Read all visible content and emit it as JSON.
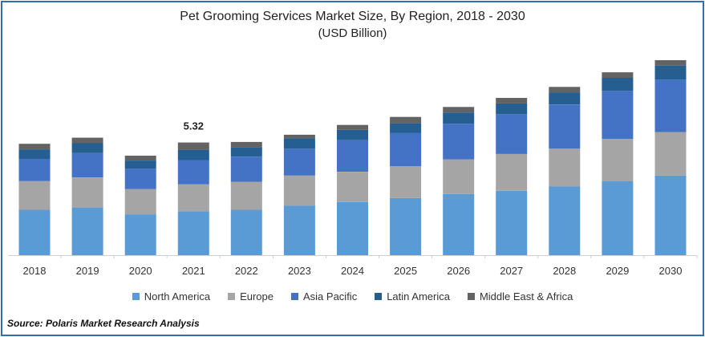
{
  "chart_data": {
    "type": "bar",
    "stacked": true,
    "title": "Pet Grooming Services Market Size, By Region, 2018 - 2030",
    "subtitle": "(USD Billion)",
    "categories": [
      "2018",
      "2019",
      "2020",
      "2021",
      "2022",
      "2023",
      "2024",
      "2025",
      "2026",
      "2027",
      "2028",
      "2029",
      "2030"
    ],
    "series": [
      {
        "name": "North America",
        "color": "#5b9bd5",
        "values": [
          2.14,
          2.25,
          1.93,
          2.07,
          2.14,
          2.33,
          2.51,
          2.7,
          2.89,
          3.04,
          3.24,
          3.49,
          3.76
        ]
      },
      {
        "name": "Europe",
        "color": "#a5a5a5",
        "values": [
          1.36,
          1.42,
          1.19,
          1.27,
          1.33,
          1.43,
          1.43,
          1.5,
          1.64,
          1.74,
          1.8,
          2.0,
          2.06
        ]
      },
      {
        "name": "Asia Pacific",
        "color": "#4472c4",
        "values": [
          1.05,
          1.15,
          0.97,
          1.15,
          1.19,
          1.27,
          1.49,
          1.58,
          1.68,
          1.88,
          2.08,
          2.27,
          2.47
        ]
      },
      {
        "name": "Latin America",
        "color": "#255e91",
        "values": [
          0.45,
          0.47,
          0.38,
          0.49,
          0.43,
          0.49,
          0.49,
          0.45,
          0.53,
          0.51,
          0.57,
          0.62,
          0.66
        ]
      },
      {
        "name": "Middle East & Africa",
        "color": "#636363",
        "values": [
          0.26,
          0.26,
          0.23,
          0.34,
          0.26,
          0.17,
          0.23,
          0.3,
          0.26,
          0.26,
          0.26,
          0.26,
          0.26
        ]
      }
    ],
    "annotations": [
      {
        "category": "2021",
        "label": "5.32"
      }
    ],
    "ylim": [
      0,
      9.4
    ],
    "grid": false,
    "legend_position": "bottom"
  },
  "source_text": "Source: Polaris Market Research Analysis"
}
